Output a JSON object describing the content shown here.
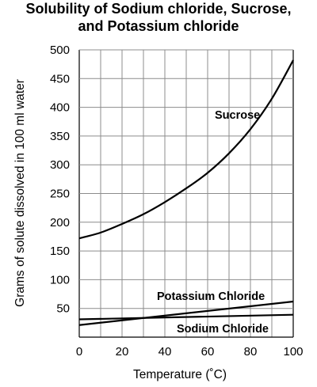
{
  "chart_data": {
    "type": "line",
    "title_line1": "Solubility of Sodium chloride, Sucrose,",
    "title_line2": "and Potassium chloride",
    "xlabel": "Temperature (˚C)",
    "ylabel": "Grams of solute dissolved in 100 ml water",
    "xlim": [
      0,
      100
    ],
    "ylim": [
      0,
      500
    ],
    "x_ticks": [
      0,
      20,
      40,
      60,
      80,
      100
    ],
    "y_ticks": [
      50,
      100,
      150,
      200,
      250,
      300,
      350,
      400,
      450,
      500
    ],
    "grid": true,
    "series": [
      {
        "name": "Sucrose",
        "x": [
          0,
          10,
          20,
          30,
          40,
          50,
          60,
          70,
          80,
          90,
          100
        ],
        "y": [
          172,
          182,
          197,
          214,
          235,
          259,
          286,
          320,
          362,
          415,
          482
        ]
      },
      {
        "name": "Potassium Chloride",
        "x": [
          0,
          100
        ],
        "y": [
          21,
          62
        ]
      },
      {
        "name": "Sodium Chloride",
        "x": [
          0,
          100
        ],
        "y": [
          31,
          39
        ]
      }
    ]
  }
}
